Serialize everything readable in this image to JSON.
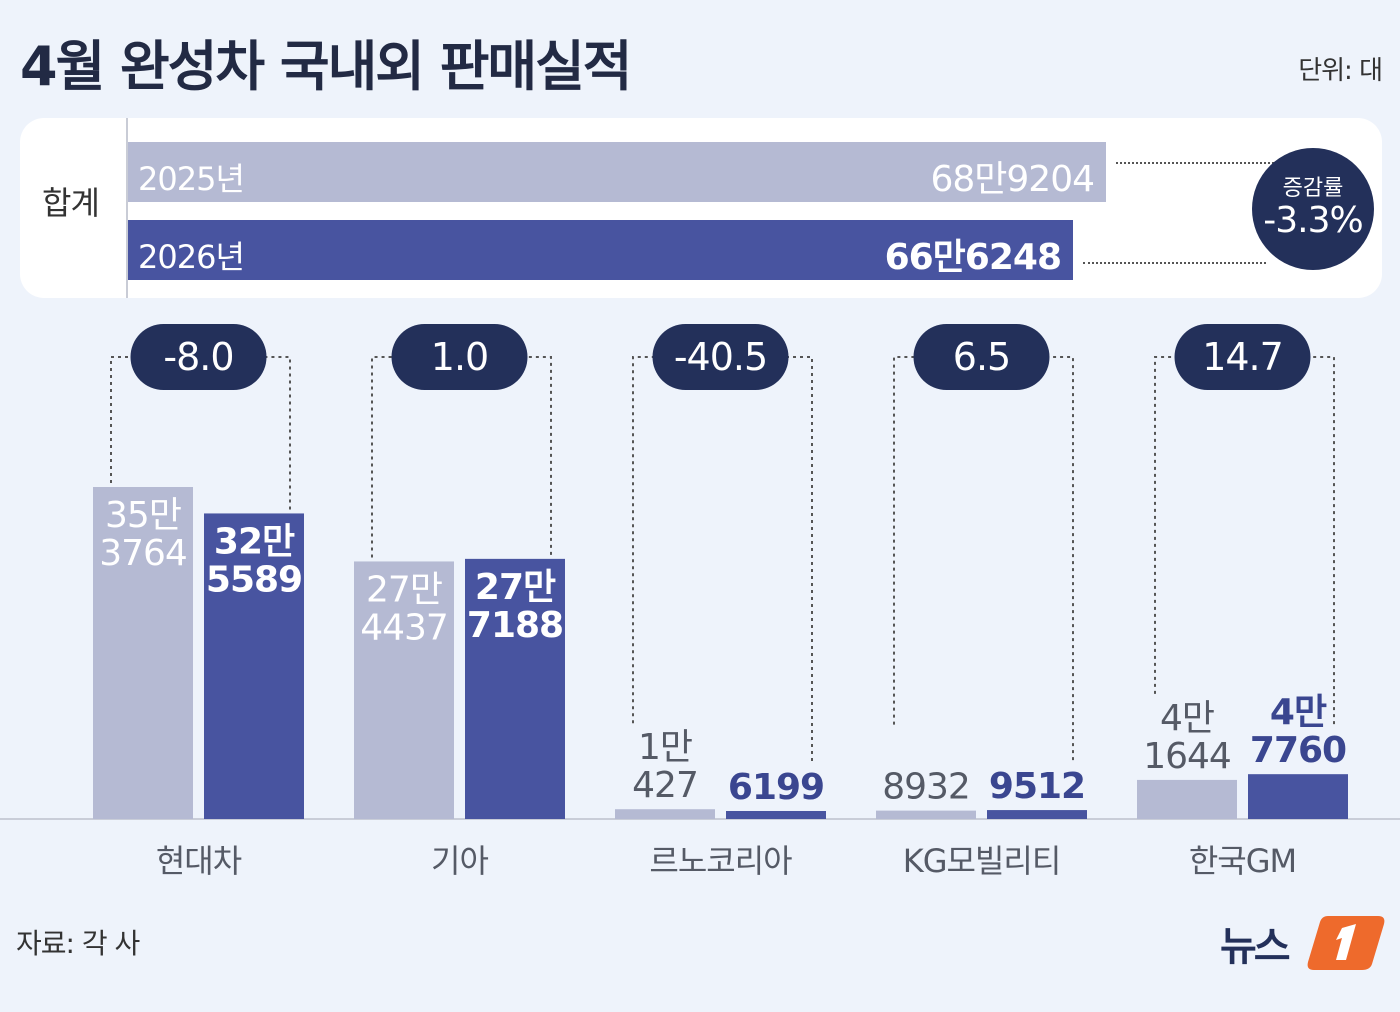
{
  "title": "4월 완성차 국내외 판매실적",
  "unit": "단위: 대",
  "source": "자료: 각 사",
  "logo_text": "뉴스1",
  "colors": {
    "y2025": "#b5bad3",
    "y2026": "#4854a0",
    "badge": "#23305a",
    "background": "#eef3fb"
  },
  "total": {
    "label": "합계",
    "rows": [
      {
        "year": "2025년",
        "display": "68만9204",
        "value": 689204
      },
      {
        "year": "2026년",
        "display": "66만6248",
        "value": 666248
      }
    ],
    "rate_label": "증감률",
    "rate_value": "-3.3%"
  },
  "chart_data": {
    "type": "bar",
    "title": "4월 완성차 국내외 판매실적",
    "categories": [
      "현대차",
      "기아",
      "르노코리아",
      "KG모빌리티",
      "한국GM"
    ],
    "series": [
      {
        "name": "2025년",
        "values": [
          353764,
          274437,
          10427,
          8932,
          41644
        ],
        "labels": [
          [
            "35만",
            "3764"
          ],
          [
            "27만",
            "4437"
          ],
          [
            "1만",
            "427"
          ],
          [
            "8932"
          ],
          [
            "4만",
            "1644"
          ]
        ]
      },
      {
        "name": "2026년",
        "values": [
          325589,
          277188,
          6199,
          9512,
          47760
        ],
        "labels": [
          [
            "32만",
            "5589"
          ],
          [
            "27만",
            "7188"
          ],
          [
            "6199"
          ],
          [
            "9512"
          ],
          [
            "4만",
            "7760"
          ]
        ]
      }
    ],
    "change_rates": [
      "-8.0",
      "1.0",
      "-40.5",
      "6.5",
      "14.7"
    ],
    "ylim": [
      0,
      353764
    ],
    "grid": false,
    "legend": "none"
  }
}
